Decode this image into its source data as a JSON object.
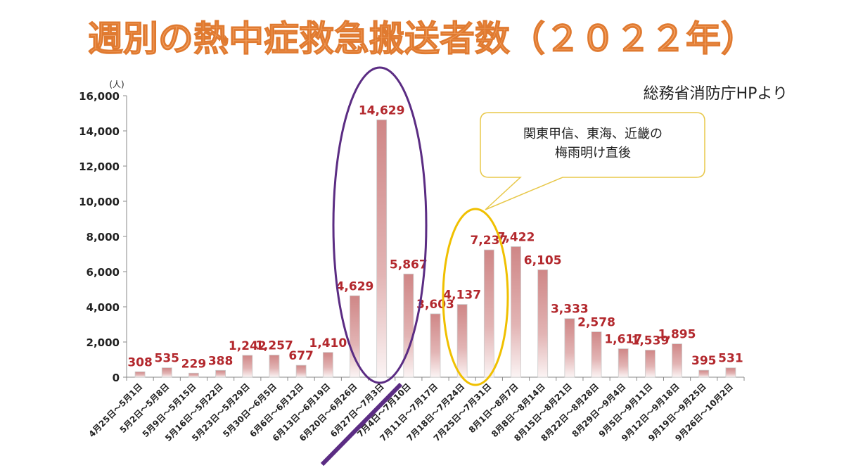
{
  "chart_data": {
    "type": "bar",
    "title": "週別の熱中症救急搬送者数（２０２２年）",
    "source": "総務省消防庁HPより",
    "ylabel": "(人)",
    "xlabel": "",
    "ylim": [
      0,
      16000
    ],
    "yticks": [
      "0",
      "2,000",
      "4,000",
      "6,000",
      "8,000",
      "10,000",
      "12,000",
      "14,000",
      "16,000"
    ],
    "categories": [
      "4月25日～5月1日",
      "5月2日～5月8日",
      "5月9日～5月15日",
      "5月16日～5月22日",
      "5月23日～5月29日",
      "5月30日～6月5日",
      "6月6日～6月12日",
      "6月13日～6月19日",
      "6月20日～6月26日",
      "6月27日～7月3日",
      "7月4日～7月10日",
      "7月11日～7月17日",
      "7月18日～7月24日",
      "7月25日～7月31日",
      "8月1日～8月7日",
      "8月8日～8月14日",
      "8月15日～8月21日",
      "8月22日～8月28日",
      "8月29日～9月4日",
      "9月5日～9月11日",
      "9月12日～9月18日",
      "9月19日～9月25日",
      "9月26日～10月2日"
    ],
    "values": [
      308,
      535,
      229,
      388,
      1242,
      1257,
      677,
      1410,
      4629,
      14629,
      5867,
      3603,
      4137,
      7237,
      7422,
      6105,
      3333,
      2578,
      1617,
      1539,
      1895,
      395,
      531
    ],
    "value_labels": [
      "308",
      "535",
      "229",
      "388",
      "1,242",
      "1,257",
      "677",
      "1,410",
      "4,629",
      "14,629",
      "5,867",
      "3,603",
      "4,137",
      "7,237",
      "7,422",
      "6,105",
      "3,333",
      "2,578",
      "1,617",
      "1,539",
      "1,895",
      "395",
      "531"
    ],
    "annotations": {
      "callout_line1": "関東甲信、東海、近畿の",
      "callout_line2": "梅雨明け直後",
      "highlight_purple_categories": [
        "6月20日～6月26日",
        "6月27日～7月3日",
        "7月4日～7月10日"
      ],
      "highlight_yellow_categories": [
        "7月25日～7月31日"
      ]
    },
    "colors": {
      "title": "#f2a062",
      "label": "#b3282d",
      "bar_top": "#cf8686",
      "purple": "#5b2c83",
      "yellow": "#f0c000"
    },
    "grid": false
  }
}
